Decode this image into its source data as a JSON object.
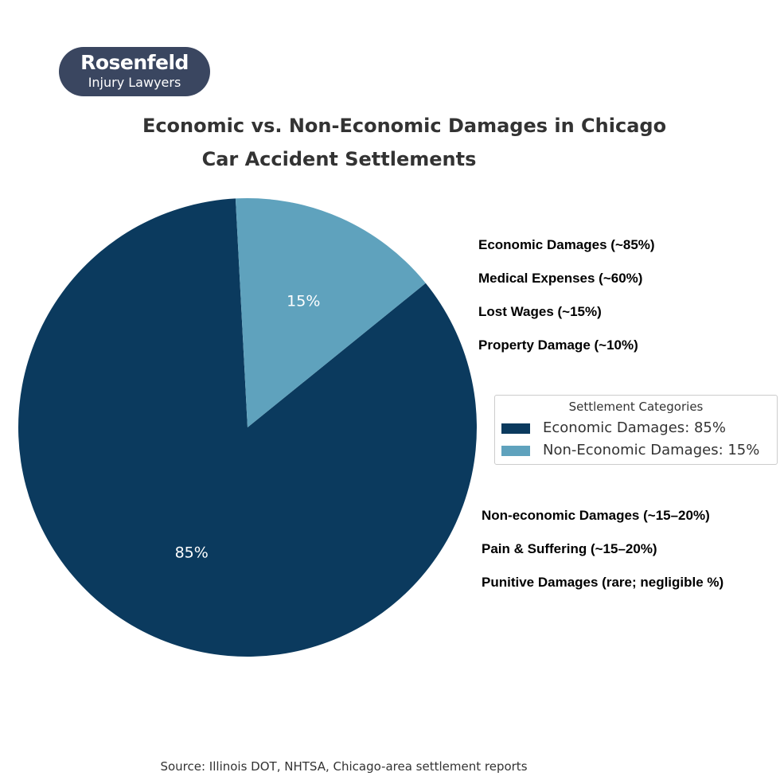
{
  "logo": {
    "name": "Rosenfeld",
    "tagline": "Injury Lawyers"
  },
  "chart_data": {
    "type": "pie",
    "title_lines": [
      "Economic vs. Non-Economic Damages in Chicago",
      "Car Accident Settlements"
    ],
    "slices": [
      {
        "label": "Economic Damages",
        "value": 85,
        "display": "85%",
        "color": "#0b3a5e",
        "label_color": "#ffffff"
      },
      {
        "label": "Non-Economic Damages",
        "value": 15,
        "display": "15%",
        "color": "#5fa2bd",
        "label_color": "#ffffff"
      }
    ],
    "start_angle_deg": -3,
    "direction": "counterclockwise",
    "legend": {
      "title": "Settlement Categories",
      "placement": "right",
      "entries": [
        {
          "label": "Economic Damages: 85%",
          "color": "#0b3a5e"
        },
        {
          "label": "Non-Economic Damages: 15%",
          "color": "#5fa2bd"
        }
      ]
    },
    "annotations": {
      "economic": [
        "Economic Damages (~85%)",
        "Medical Expenses (~60%)",
        "Lost Wages (~15%)",
        "Property Damage (~10%)"
      ],
      "non_economic": [
        "Non-economic Damages (~15–20%)",
        "Pain & Suffering (~15–20%)",
        "Punitive Damages (rare; negligible %)"
      ]
    },
    "source": "Source: Illinois DOT, NHTSA, Chicago-area settlement reports"
  }
}
